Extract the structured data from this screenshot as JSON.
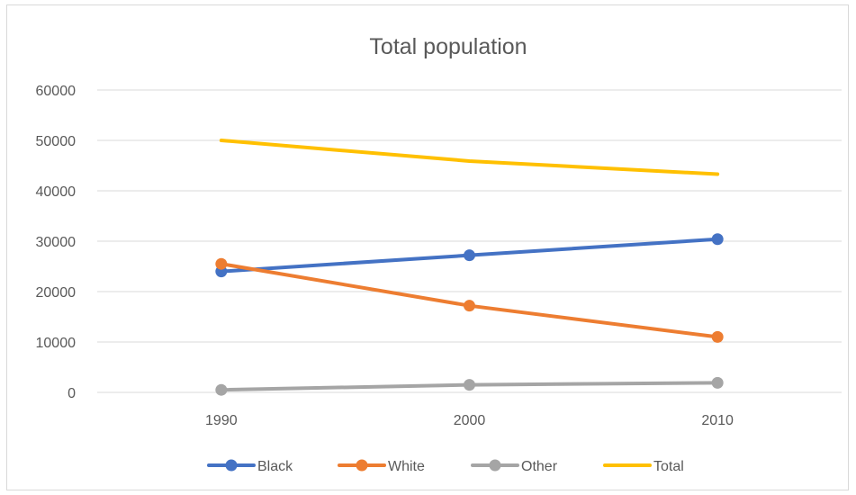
{
  "chart_data": {
    "type": "line",
    "title": "Total population",
    "xlabel": "",
    "ylabel": "",
    "categories": [
      "1990",
      "2000",
      "2010"
    ],
    "ylim": [
      0,
      60000
    ],
    "yticks": [
      0,
      10000,
      20000,
      30000,
      40000,
      50000,
      60000
    ],
    "grid": true,
    "legend_position": "bottom",
    "series": [
      {
        "name": "Black",
        "values": [
          24000,
          27200,
          30400
        ],
        "color": "#4472C4",
        "markers": true
      },
      {
        "name": "White",
        "values": [
          25500,
          17200,
          11000
        ],
        "color": "#ED7D31",
        "markers": true
      },
      {
        "name": "Other",
        "values": [
          500,
          1500,
          1900
        ],
        "color": "#A5A5A5",
        "markers": true
      },
      {
        "name": "Total",
        "values": [
          50000,
          45900,
          43300
        ],
        "color": "#FFC000",
        "markers": false
      }
    ]
  }
}
